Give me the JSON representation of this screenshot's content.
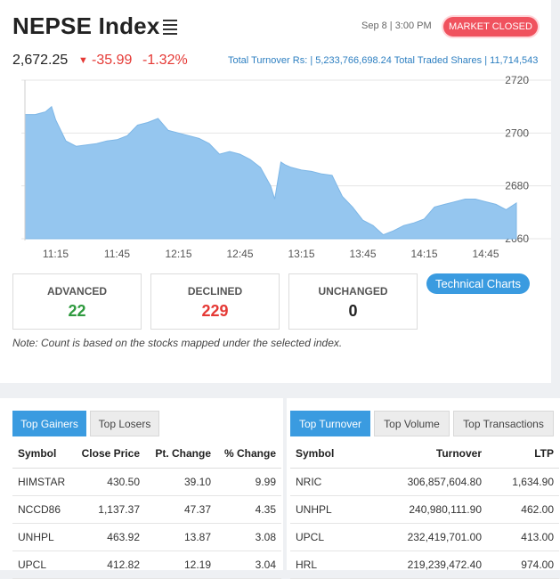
{
  "header": {
    "title": "NEPSE Index",
    "datetime": "Sep 8 | 3:00 PM",
    "market_status": "MARKET CLOSED",
    "index_value": "2,672.25",
    "change": "-35.99",
    "change_pct": "-1.32%",
    "turnover_text": "Total Turnover Rs: | 5,233,766,698.24   Total Traded Shares | 11,714,543"
  },
  "colors": {
    "accent": "#3a9be0",
    "negative": "#e53935",
    "positive": "#2e9a3e",
    "area_fill": "#95c6ef",
    "badge": "#f0525e"
  },
  "chart_data": {
    "type": "area",
    "x_tick_labels": [
      "11:15",
      "11:45",
      "12:15",
      "12:45",
      "13:15",
      "13:45",
      "14:15",
      "14:45"
    ],
    "y_tick_labels": [
      "2720",
      "2700",
      "2680",
      "2660"
    ],
    "ylim": [
      2660,
      2720
    ],
    "x": [
      "11:00",
      "11:05",
      "11:10",
      "11:13",
      "11:15",
      "11:20",
      "11:25",
      "11:30",
      "11:35",
      "11:40",
      "11:45",
      "11:50",
      "11:55",
      "12:00",
      "12:05",
      "12:10",
      "12:15",
      "12:20",
      "12:25",
      "12:30",
      "12:35",
      "12:40",
      "12:45",
      "12:50",
      "12:55",
      "13:00",
      "13:02",
      "13:05",
      "13:07",
      "13:10",
      "13:15",
      "13:20",
      "13:25",
      "13:30",
      "13:35",
      "13:40",
      "13:45",
      "13:50",
      "13:55",
      "14:00",
      "14:05",
      "14:10",
      "14:15",
      "14:20",
      "14:25",
      "14:30",
      "14:35",
      "14:40",
      "14:45",
      "14:50",
      "14:55",
      "15:00"
    ],
    "values": [
      2707,
      2707,
      2708,
      2710,
      2705,
      2697,
      2695,
      2695.5,
      2696,
      2697,
      2697.5,
      2699,
      2703,
      2704,
      2705.5,
      2701,
      2700,
      2699,
      2698,
      2696,
      2692,
      2693,
      2692,
      2690,
      2687,
      2680,
      2675,
      2689,
      2688,
      2687,
      2686,
      2685.5,
      2684.5,
      2684,
      2676,
      2672,
      2667,
      2665,
      2661.5,
      2663,
      2665,
      2666,
      2667.5,
      2672,
      2673,
      2674,
      2675,
      2675,
      2674,
      2673,
      2671,
      2673.5
    ]
  },
  "stats": {
    "advanced_label": "ADVANCED",
    "advanced_value": "22",
    "declined_label": "DECLINED",
    "declined_value": "229",
    "unchanged_label": "UNCHANGED",
    "unchanged_value": "0"
  },
  "tech_button": "Technical Charts",
  "note": "Note: Count is based on the stocks mapped under the selected index.",
  "left_panel": {
    "tabs": [
      "Top Gainers",
      "Top Losers"
    ],
    "headers": [
      "Symbol",
      "Close Price",
      "Pt. Change",
      "% Change"
    ],
    "rows": [
      [
        "HIMSTAR",
        "430.50",
        "39.10",
        "9.99"
      ],
      [
        "NCCD86",
        "1,137.37",
        "47.37",
        "4.35"
      ],
      [
        "UNHPL",
        "463.92",
        "13.87",
        "3.08"
      ],
      [
        "UPCL",
        "412.82",
        "12.19",
        "3.04"
      ]
    ]
  },
  "right_panel": {
    "tabs": [
      "Top Turnover",
      "Top Volume",
      "Top Transactions"
    ],
    "headers": [
      "Symbol",
      "Turnover",
      "LTP"
    ],
    "rows": [
      [
        "NRIC",
        "306,857,604.80",
        "1,634.90"
      ],
      [
        "UNHPL",
        "240,980,111.90",
        "462.00"
      ],
      [
        "UPCL",
        "232,419,701.00",
        "413.00"
      ],
      [
        "HRL",
        "219,239,472.40",
        "974.00"
      ]
    ]
  }
}
